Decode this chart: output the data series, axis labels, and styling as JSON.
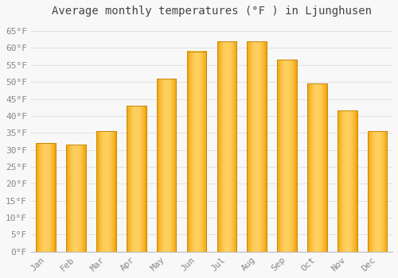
{
  "title": "Average monthly temperatures (°F ) in Ljunghusen",
  "months": [
    "Jan",
    "Feb",
    "Mar",
    "Apr",
    "May",
    "Jun",
    "Jul",
    "Aug",
    "Sep",
    "Oct",
    "Nov",
    "Dec"
  ],
  "values": [
    32,
    31.5,
    35.5,
    43,
    51,
    59,
    62,
    62,
    56.5,
    49.5,
    41.5,
    35.5
  ],
  "bar_color_light": "#FFD060",
  "bar_color_dark": "#F0A000",
  "bar_edge_color": "#C8880A",
  "background_color": "#F8F8F8",
  "grid_color": "#DDDDDD",
  "ylim": [
    0,
    68
  ],
  "yticks": [
    0,
    5,
    10,
    15,
    20,
    25,
    30,
    35,
    40,
    45,
    50,
    55,
    60,
    65
  ],
  "ytick_labels": [
    "0°F",
    "5°F",
    "10°F",
    "15°F",
    "20°F",
    "25°F",
    "30°F",
    "35°F",
    "40°F",
    "45°F",
    "50°F",
    "55°F",
    "60°F",
    "65°F"
  ],
  "title_fontsize": 10,
  "tick_fontsize": 8,
  "font_family": "monospace"
}
